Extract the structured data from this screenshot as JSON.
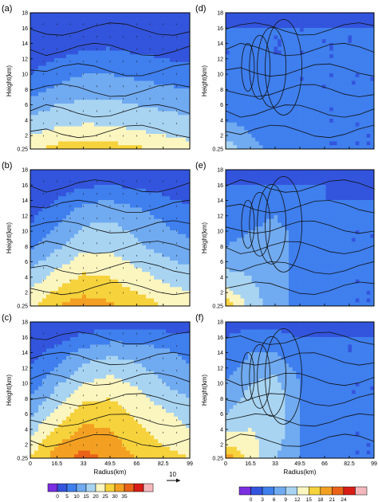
{
  "figure": {
    "colorbar_left": {
      "ticks": [
        "0",
        "5",
        "10",
        "15",
        "20",
        "25",
        "30",
        "35"
      ],
      "colors": [
        "#7b2fe0",
        "#3355dd",
        "#3f7fee",
        "#70aaf0",
        "#a8d4f2",
        "#fbf5c0",
        "#f6d23c",
        "#f3a022",
        "#ea6218",
        "#d81d16",
        "#f4b8bc"
      ],
      "arrow_ref": "10"
    },
    "colorbar_right": {
      "ticks": [
        "0",
        "3",
        "6",
        "9",
        "12",
        "15",
        "18",
        "21",
        "24"
      ],
      "colors": [
        "#7b2fe0",
        "#3355dd",
        "#3f7fee",
        "#70aaf0",
        "#a8d4f2",
        "#fbf5c0",
        "#f6d23c",
        "#f3a022",
        "#ea6218",
        "#d81d16",
        "#f4b8bc"
      ]
    }
  },
  "chart_data": [
    {
      "type": "heatmap",
      "panel_label": "(a)",
      "ylabel": "Height(km)",
      "xlabel": "",
      "yticks": [
        "0.25",
        "2",
        "4",
        "6",
        "8",
        "10",
        "12",
        "14",
        "16",
        "18"
      ],
      "xticks": [],
      "xlim": [
        0,
        99
      ],
      "ylim": [
        0.25,
        18
      ],
      "overlay": "wind vectors + contours",
      "x": [
        0,
        16.5,
        33,
        49.5,
        66,
        82.5,
        99
      ],
      "y": [
        0.25,
        2,
        4,
        6,
        8,
        10,
        12,
        14,
        16,
        18
      ],
      "z": [
        [
          23,
          27,
          29,
          28,
          26,
          24,
          22
        ],
        [
          20,
          22,
          23,
          22,
          21,
          20,
          19
        ],
        [
          16,
          18,
          19,
          19,
          18,
          17,
          16
        ],
        [
          12,
          15,
          16,
          16,
          15,
          14,
          13
        ],
        [
          8,
          11,
          13,
          13,
          12,
          11,
          10
        ],
        [
          5,
          8,
          10,
          10,
          9,
          8,
          7
        ],
        [
          3,
          5,
          6,
          7,
          6,
          5,
          4
        ],
        [
          2,
          3,
          4,
          4,
          3,
          3,
          2
        ],
        [
          1,
          1,
          2,
          2,
          1,
          1,
          1
        ],
        [
          0,
          0,
          1,
          1,
          0,
          0,
          0
        ]
      ]
    },
    {
      "type": "heatmap",
      "panel_label": "(b)",
      "ylabel": "Height(km)",
      "xlabel": "",
      "yticks": [
        "0.25",
        "2",
        "4",
        "6",
        "8",
        "10",
        "12",
        "14",
        "16",
        "18"
      ],
      "xticks": [],
      "xlim": [
        0,
        99
      ],
      "ylim": [
        0.25,
        18
      ],
      "overlay": "wind vectors + contours",
      "x": [
        0,
        16.5,
        33,
        49.5,
        66,
        82.5,
        99
      ],
      "y": [
        0.25,
        2,
        4,
        6,
        8,
        10,
        12,
        14,
        16,
        18
      ],
      "z": [
        [
          24,
          30,
          33,
          31,
          28,
          25,
          23
        ],
        [
          21,
          26,
          29,
          28,
          25,
          22,
          20
        ],
        [
          17,
          22,
          26,
          25,
          22,
          19,
          17
        ],
        [
          13,
          18,
          22,
          22,
          19,
          16,
          14
        ],
        [
          9,
          14,
          19,
          19,
          16,
          13,
          11
        ],
        [
          6,
          11,
          16,
          17,
          14,
          11,
          9
        ],
        [
          4,
          8,
          13,
          14,
          12,
          9,
          7
        ],
        [
          2,
          5,
          9,
          10,
          8,
          6,
          4
        ],
        [
          1,
          2,
          4,
          5,
          4,
          3,
          2
        ],
        [
          0,
          1,
          1,
          1,
          1,
          0,
          0
        ]
      ]
    },
    {
      "type": "heatmap",
      "panel_label": "(c)",
      "ylabel": "Height(km)",
      "xlabel": "Radius(km)",
      "yticks": [
        "0.25",
        "2",
        "4",
        "6",
        "8",
        "10",
        "12",
        "14",
        "16",
        "18"
      ],
      "xticks": [
        "0",
        "16.5",
        "33",
        "49.5",
        "66",
        "82.5",
        "99"
      ],
      "xlim": [
        0,
        99
      ],
      "ylim": [
        0.25,
        18
      ],
      "overlay": "wind vectors + contours",
      "x": [
        0,
        16.5,
        33,
        49.5,
        66,
        82.5,
        99
      ],
      "y": [
        0.25,
        2,
        4,
        6,
        8,
        10,
        12,
        14,
        16,
        18
      ],
      "z": [
        [
          25,
          33,
          37,
          34,
          30,
          27,
          25
        ],
        [
          22,
          30,
          34,
          32,
          28,
          25,
          23
        ],
        [
          18,
          26,
          31,
          30,
          26,
          23,
          20
        ],
        [
          14,
          22,
          28,
          28,
          24,
          21,
          18
        ],
        [
          10,
          18,
          24,
          25,
          22,
          18,
          15
        ],
        [
          7,
          14,
          20,
          22,
          19,
          15,
          12
        ],
        [
          5,
          10,
          16,
          18,
          16,
          13,
          10
        ],
        [
          3,
          7,
          12,
          14,
          13,
          11,
          9
        ],
        [
          1,
          3,
          6,
          8,
          8,
          7,
          6
        ],
        [
          0,
          1,
          2,
          3,
          3,
          2,
          2
        ]
      ]
    },
    {
      "type": "heatmap",
      "panel_label": "(d)",
      "ylabel": "Height(km)",
      "xlabel": "",
      "yticks": [
        "0.25",
        "2",
        "4",
        "6",
        "8",
        "10",
        "12",
        "14",
        "16",
        "18"
      ],
      "xticks": [],
      "xlim": [
        0,
        99
      ],
      "ylim": [
        0.25,
        18
      ],
      "overlay": "contours",
      "x": [
        0,
        16.5,
        33,
        49.5,
        66,
        82.5,
        99
      ],
      "y": [
        0.25,
        2,
        4,
        6,
        8,
        10,
        12,
        14,
        16,
        18
      ],
      "z": [
        [
          11,
          7,
          5,
          4,
          3,
          3,
          3
        ],
        [
          8,
          6,
          5,
          4,
          3,
          3,
          3
        ],
        [
          6,
          5,
          4,
          4,
          3,
          3,
          3
        ],
        [
          5,
          5,
          4,
          4,
          3,
          3,
          3
        ],
        [
          4,
          4,
          4,
          3,
          3,
          3,
          3
        ],
        [
          4,
          4,
          3,
          3,
          3,
          3,
          3
        ],
        [
          3,
          3,
          3,
          3,
          3,
          3,
          3
        ],
        [
          3,
          3,
          3,
          3,
          3,
          3,
          3
        ],
        [
          3,
          3,
          3,
          3,
          3,
          3,
          3
        ],
        [
          2,
          2,
          2,
          1,
          1,
          0,
          0
        ]
      ]
    },
    {
      "type": "heatmap",
      "panel_label": "(e)",
      "ylabel": "Height(km)",
      "xlabel": "",
      "yticks": [
        "0.25",
        "2",
        "4",
        "6",
        "8",
        "10",
        "12",
        "14",
        "16",
        "18"
      ],
      "xticks": [],
      "xlim": [
        0,
        99
      ],
      "ylim": [
        0.25,
        18
      ],
      "overlay": "contours",
      "x": [
        0,
        16.5,
        33,
        49.5,
        66,
        82.5,
        99
      ],
      "y": [
        0.25,
        2,
        4,
        6,
        8,
        10,
        12,
        14,
        16,
        18
      ],
      "z": [
        [
          18,
          11,
          7,
          5,
          4,
          3,
          3
        ],
        [
          13,
          10,
          7,
          5,
          4,
          3,
          3
        ],
        [
          10,
          9,
          7,
          5,
          4,
          3,
          3
        ],
        [
          8,
          8,
          7,
          5,
          4,
          3,
          3
        ],
        [
          6,
          7,
          7,
          5,
          4,
          3,
          3
        ],
        [
          5,
          6,
          7,
          5,
          4,
          3,
          3
        ],
        [
          4,
          5,
          6,
          4,
          4,
          3,
          3
        ],
        [
          3,
          4,
          4,
          4,
          3,
          3,
          3
        ],
        [
          3,
          3,
          3,
          3,
          3,
          2,
          2
        ],
        [
          2,
          2,
          2,
          1,
          1,
          0,
          0
        ]
      ]
    },
    {
      "type": "heatmap",
      "panel_label": "(f)",
      "ylabel": "Height(km)",
      "xlabel": "Radius(km)",
      "yticks": [
        "0.25",
        "2",
        "4",
        "6",
        "8",
        "10",
        "12",
        "14",
        "16",
        "18"
      ],
      "xticks": [
        "0",
        "16.5",
        "33",
        "49.5",
        "66",
        "82.5",
        "99"
      ],
      "xlim": [
        0,
        99
      ],
      "ylim": [
        0.25,
        18
      ],
      "overlay": "contours",
      "x": [
        0,
        16.5,
        33,
        49.5,
        66,
        82.5,
        99
      ],
      "y": [
        0.25,
        2,
        4,
        6,
        8,
        10,
        12,
        14,
        16,
        18
      ],
      "z": [
        [
          20,
          14,
          9,
          6,
          4,
          3,
          3
        ],
        [
          15,
          13,
          10,
          6,
          4,
          3,
          3
        ],
        [
          11,
          12,
          11,
          6,
          4,
          3,
          3
        ],
        [
          9,
          11,
          11,
          6,
          4,
          3,
          3
        ],
        [
          7,
          10,
          11,
          6,
          4,
          3,
          3
        ],
        [
          6,
          9,
          10,
          6,
          4,
          3,
          3
        ],
        [
          5,
          7,
          8,
          5,
          4,
          3,
          3
        ],
        [
          4,
          6,
          6,
          4,
          3,
          3,
          3
        ],
        [
          3,
          4,
          4,
          3,
          3,
          3,
          3
        ],
        [
          2,
          2,
          2,
          1,
          1,
          0,
          0
        ]
      ]
    }
  ]
}
